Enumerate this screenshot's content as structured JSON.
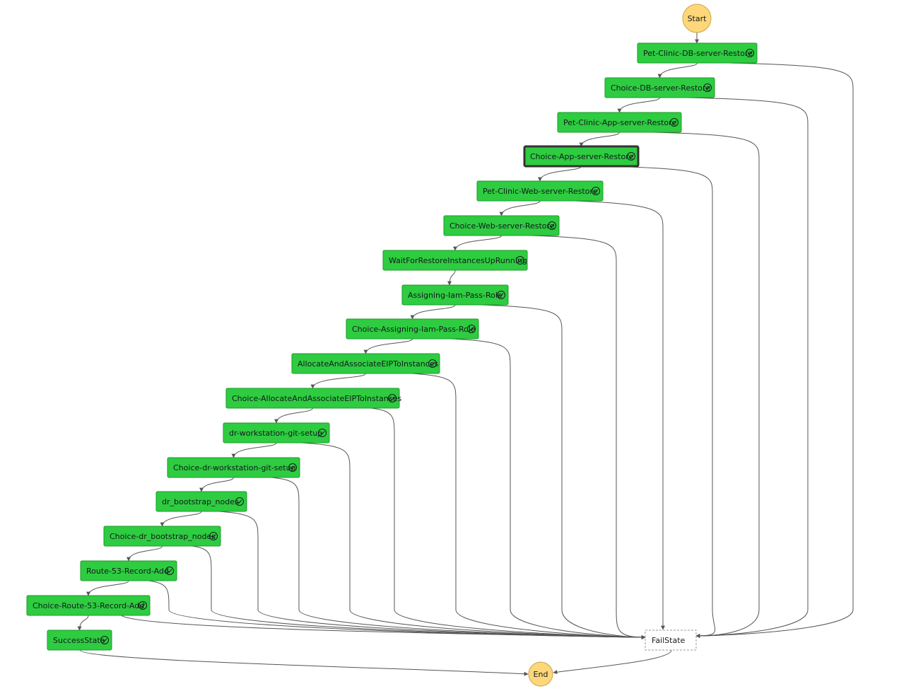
{
  "start": {
    "label": "Start"
  },
  "end": {
    "label": "End"
  },
  "fail": {
    "label": "FailState"
  },
  "nodes": [
    {
      "label": "Pet-Clinic-DB-server-Restore"
    },
    {
      "label": "Choice-DB-server-Restore"
    },
    {
      "label": "Pet-Clinic-App-server-Restore"
    },
    {
      "label": "Choice-App-server-Restore"
    },
    {
      "label": "Pet-Clinic-Web-server-Restore"
    },
    {
      "label": "Choice-Web-server-Restore"
    },
    {
      "label": "WaitForRestoreInstancesUpRunning"
    },
    {
      "label": "Assigning-Iam-Pass-Role"
    },
    {
      "label": "Choice-Assigning-Iam-Pass-Role"
    },
    {
      "label": "AllocateAndAssociateEIPToInstances"
    },
    {
      "label": "Choice-AllocateAndAssociateEIPToInstances"
    },
    {
      "label": "dr-workstation-git-setup"
    },
    {
      "label": "Choice-dr-workstation-git-setup"
    },
    {
      "label": "dr_bootstrap_nodes"
    },
    {
      "label": "Choice-dr_bootstrap_nodes"
    },
    {
      "label": "Route-53-Record-Add"
    },
    {
      "label": "Choice-Route-53-Record-Add"
    },
    {
      "label": "SuccessState"
    }
  ]
}
